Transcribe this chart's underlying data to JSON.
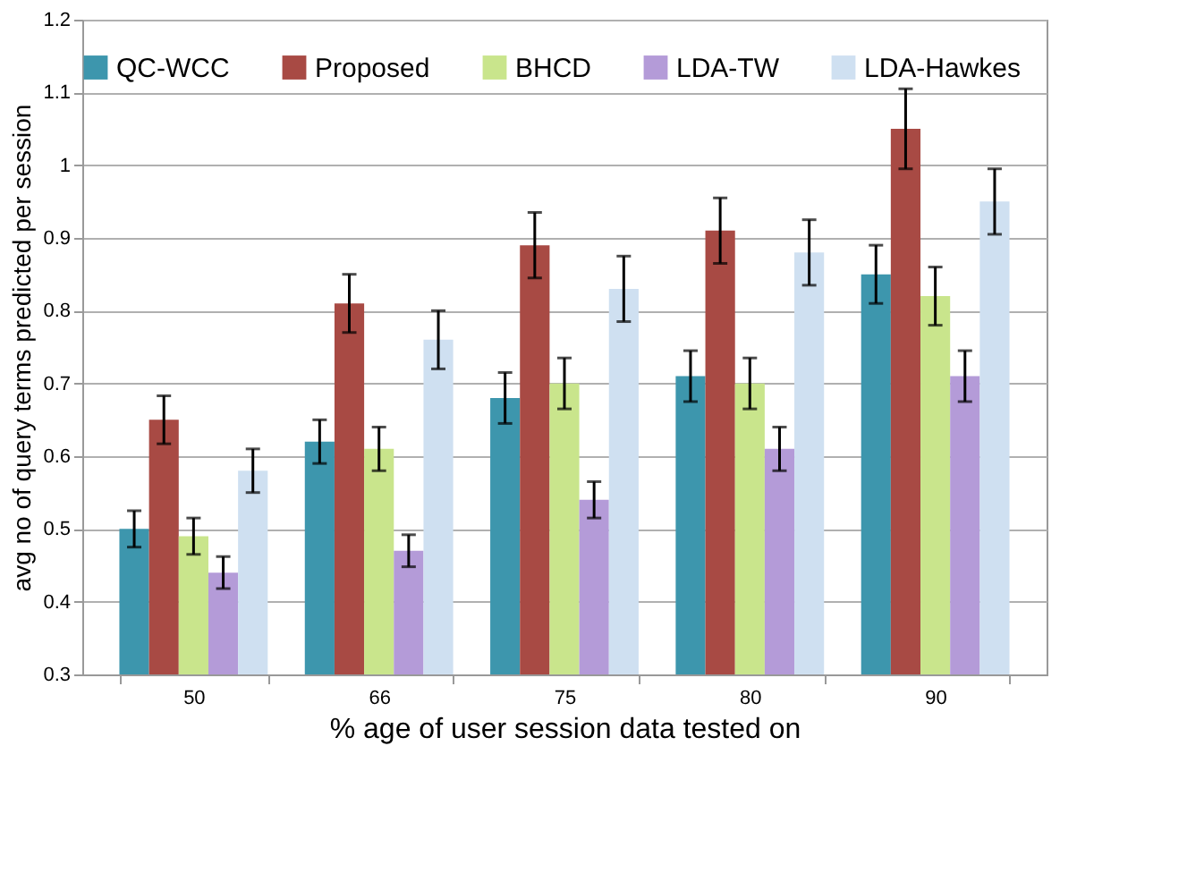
{
  "chart_data": {
    "type": "bar",
    "xlabel": "% age of user session data tested on",
    "ylabel": "avg no of query terms predicted per session",
    "categories": [
      "50",
      "66",
      "75",
      "80",
      "90"
    ],
    "series": [
      {
        "name": "QC-WCC",
        "color": "#3d96ad",
        "values": [
          0.5,
          0.62,
          0.68,
          0.71,
          0.85
        ],
        "errors": [
          0.025,
          0.03,
          0.035,
          0.035,
          0.04
        ]
      },
      {
        "name": "Proposed",
        "color": "#a84a44",
        "values": [
          0.65,
          0.81,
          0.89,
          0.91,
          1.05
        ],
        "errors": [
          0.033,
          0.04,
          0.045,
          0.045,
          0.055
        ]
      },
      {
        "name": "BHCD",
        "color": "#c9e58c",
        "values": [
          0.49,
          0.61,
          0.7,
          0.7,
          0.82
        ],
        "errors": [
          0.025,
          0.03,
          0.035,
          0.035,
          0.04
        ]
      },
      {
        "name": "LDA-TW",
        "color": "#b49bd8",
        "values": [
          0.44,
          0.47,
          0.54,
          0.61,
          0.71
        ],
        "errors": [
          0.022,
          0.022,
          0.025,
          0.03,
          0.035
        ]
      },
      {
        "name": "LDA-Hawkes",
        "color": "#cfe0f1",
        "values": [
          0.58,
          0.76,
          0.83,
          0.88,
          0.95
        ],
        "errors": [
          0.03,
          0.04,
          0.045,
          0.045,
          0.045
        ]
      }
    ],
    "ylim": [
      0.3,
      1.2
    ],
    "yticks": [
      0.3,
      0.4,
      0.5,
      0.6,
      0.7,
      0.8,
      0.9,
      1,
      1.1,
      1.2
    ],
    "grid": "y",
    "legend": "top"
  }
}
